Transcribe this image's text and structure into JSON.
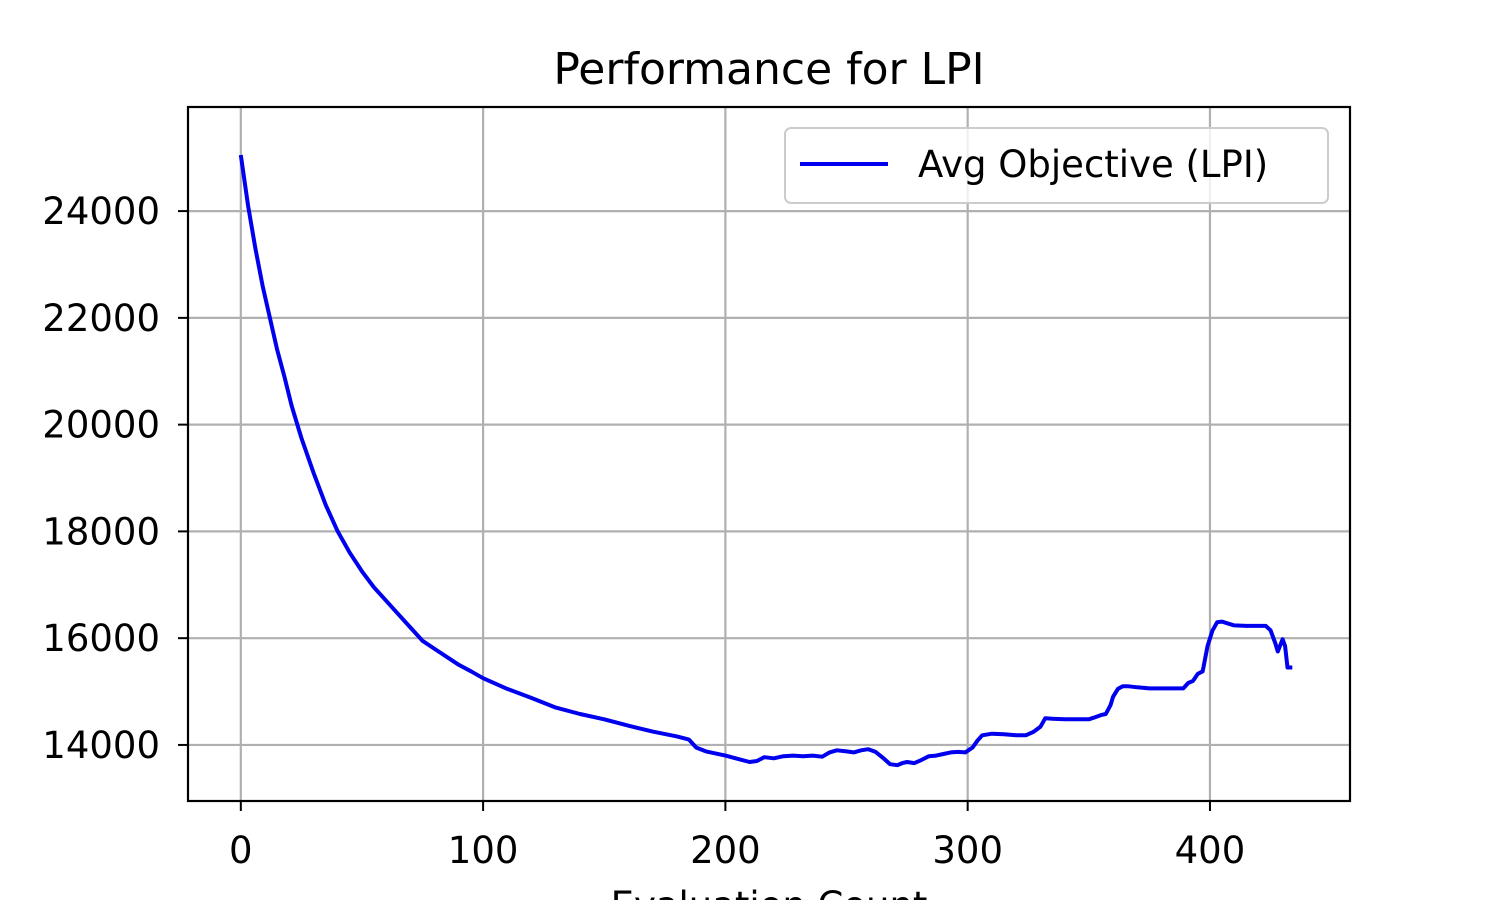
{
  "chart_data": {
    "type": "line",
    "title": "Performance for LPI",
    "xlabel": "Evaluation Count",
    "ylabel": "",
    "xlim": [
      -21.8,
      457.8
    ],
    "ylim": [
      12950,
      25950
    ],
    "xticks": [
      0,
      100,
      200,
      300,
      400
    ],
    "yticks": [
      14000,
      16000,
      18000,
      20000,
      22000,
      24000
    ],
    "xtick_labels": [
      "0",
      "100",
      "200",
      "300",
      "400"
    ],
    "ytick_labels": [
      "14000",
      "16000",
      "18000",
      "20000",
      "22000",
      "24000"
    ],
    "grid": true,
    "legend_position": "top-right",
    "series": [
      {
        "name": "Avg Objective (LPI)",
        "color": "#0000ee",
        "x": [
          0,
          3,
          6,
          9,
          12,
          15,
          18,
          21,
          25,
          30,
          35,
          40,
          45,
          50,
          55,
          60,
          65,
          70,
          75,
          80,
          85,
          90,
          95,
          100,
          110,
          120,
          130,
          140,
          150,
          160,
          170,
          180,
          185,
          188,
          192,
          200,
          205,
          210,
          213,
          216,
          220,
          224,
          228,
          232,
          236,
          240,
          243,
          246,
          250,
          253,
          256,
          259,
          262,
          265,
          268,
          271,
          273,
          275,
          278,
          281,
          284,
          287,
          290,
          293,
          296,
          299,
          302,
          304,
          306,
          310,
          315,
          320,
          324,
          327,
          330,
          332,
          335,
          340,
          345,
          350,
          352,
          355,
          357,
          359,
          360,
          362,
          364,
          366,
          370,
          375,
          380,
          385,
          389,
          391,
          393,
          395,
          397,
          399,
          401,
          403,
          405,
          407,
          410,
          415,
          420,
          423,
          425,
          427,
          428,
          430,
          431,
          432,
          434
        ],
        "values": [
          25050,
          24100,
          23300,
          22600,
          22000,
          21400,
          20900,
          20350,
          19750,
          19100,
          18500,
          18000,
          17600,
          17250,
          16950,
          16700,
          16450,
          16200,
          15950,
          15800,
          15650,
          15500,
          15380,
          15250,
          15050,
          14880,
          14700,
          14580,
          14480,
          14360,
          14250,
          14160,
          14100,
          13950,
          13880,
          13800,
          13740,
          13680,
          13700,
          13770,
          13750,
          13790,
          13800,
          13790,
          13800,
          13780,
          13860,
          13900,
          13880,
          13860,
          13900,
          13920,
          13870,
          13760,
          13640,
          13620,
          13660,
          13680,
          13660,
          13720,
          13790,
          13800,
          13830,
          13860,
          13870,
          13860,
          13950,
          14080,
          14180,
          14210,
          14200,
          14180,
          14180,
          14240,
          14340,
          14500,
          14490,
          14480,
          14480,
          14480,
          14510,
          14560,
          14580,
          14750,
          14900,
          15050,
          15100,
          15100,
          15080,
          15060,
          15060,
          15060,
          15060,
          15160,
          15200,
          15330,
          15380,
          15850,
          16140,
          16300,
          16310,
          16280,
          16240,
          16230,
          16230,
          16230,
          16150,
          15900,
          15750,
          15980,
          15850,
          15450,
          15450
        ]
      }
    ]
  }
}
